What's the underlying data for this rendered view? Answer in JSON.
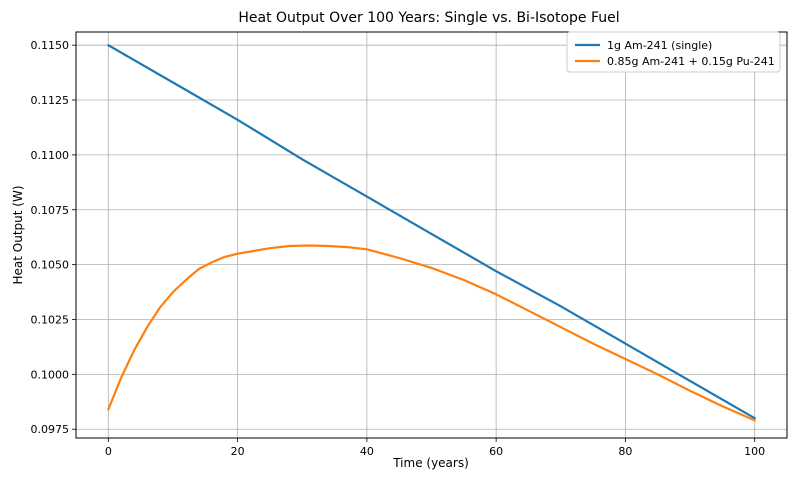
{
  "chart_data": {
    "type": "line",
    "title": "Heat Output Over 100 Years: Single vs. Bi-Isotope Fuel",
    "xlabel": "Time (years)",
    "ylabel": "Heat Output (W)",
    "xlim": [
      -5,
      105
    ],
    "ylim": [
      0.0971,
      0.1156
    ],
    "xticks": [
      0,
      20,
      40,
      60,
      80,
      100
    ],
    "xtick_labels": [
      "0",
      "20",
      "40",
      "60",
      "80",
      "100"
    ],
    "yticks": [
      0.0975,
      0.1,
      0.1025,
      0.105,
      0.1075,
      0.11,
      0.1125,
      0.115
    ],
    "ytick_labels": [
      "0.0975",
      "0.1000",
      "0.1025",
      "0.1050",
      "0.1075",
      "0.1100",
      "0.1125",
      "0.1150"
    ],
    "grid": true,
    "legend_position": "top-right",
    "series": [
      {
        "name": "1g Am-241 (single)",
        "color": "#1f77b4",
        "x": [
          0,
          10,
          20,
          30,
          40,
          50,
          60,
          70,
          80,
          90,
          100
        ],
        "y": [
          0.115,
          0.1133,
          0.1116,
          0.1098,
          0.1081,
          0.1064,
          0.1047,
          0.1031,
          0.1014,
          0.0997,
          0.098
        ]
      },
      {
        "name": "0.85g Am-241 + 0.15g Pu-241",
        "color": "#ff7f0e",
        "x": [
          0,
          2,
          4,
          6,
          8,
          10,
          12,
          14,
          16,
          18,
          20,
          22,
          25,
          28,
          31,
          34,
          37,
          40,
          45,
          50,
          55,
          60,
          65,
          70,
          75,
          80,
          85,
          90,
          95,
          100
        ],
        "y": [
          0.0984,
          0.09985,
          0.1011,
          0.10215,
          0.10305,
          0.10375,
          0.1043,
          0.1048,
          0.1051,
          0.10535,
          0.1055,
          0.1056,
          0.10575,
          0.10585,
          0.10587,
          0.10585,
          0.1058,
          0.1057,
          0.1053,
          0.10485,
          0.1043,
          0.10365,
          0.1029,
          0.10215,
          0.1014,
          0.1007,
          0.1,
          0.09925,
          0.09855,
          0.0979
        ]
      }
    ]
  }
}
